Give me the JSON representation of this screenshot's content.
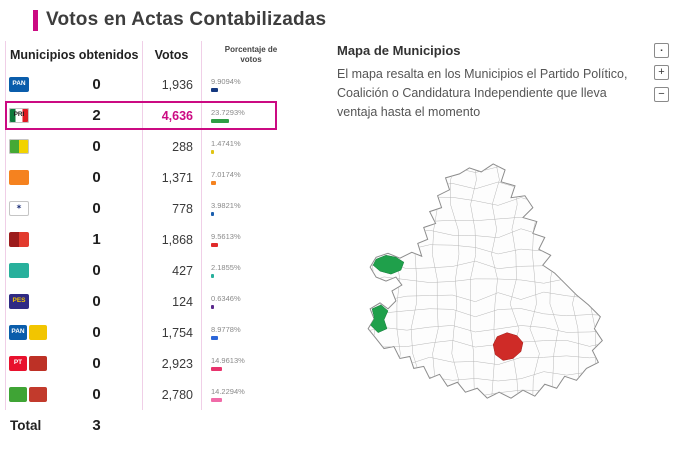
{
  "theme": {
    "accent": "#cb0a82",
    "separator": "#f0cfe7",
    "map_outline": "#8c8c8c"
  },
  "title": "Votos en Actas Contabilizadas",
  "table": {
    "headers": {
      "municipios": "Municipios obtenidos",
      "votos": "Votos",
      "porcentaje": "Porcentaje de votos"
    },
    "rows": [
      {
        "party": "pan",
        "logo": [
          {
            "colors": [
              "#0a5dab"
            ],
            "label": "PAN",
            "fg": "#ffffff"
          }
        ],
        "municipios": "0",
        "votos": "1,936",
        "pct": "9.9094%",
        "pct_value": 9.9094,
        "bar_color": "#14387f",
        "highlight": false
      },
      {
        "party": "pri",
        "logo": [
          {
            "colors": [
              "#0c7a3c",
              "#ffffff",
              "#df1a22"
            ],
            "label": "PRI",
            "fg": "#1c1c1c",
            "border": true
          }
        ],
        "municipios": "2",
        "votos": "4,636",
        "pct": "23.7293%",
        "pct_value": 23.7293,
        "bar_color": "#2f9e45",
        "highlight": true
      },
      {
        "party": "green-yellow-party",
        "logo": [
          {
            "colors": [
              "#45a935",
              "#f2d300"
            ],
            "label": "",
            "fg": "",
            "border": true
          }
        ],
        "municipios": "0",
        "votos": "288",
        "pct": "1.4741%",
        "pct_value": 1.4741,
        "bar_color": "#e0c414",
        "highlight": false
      },
      {
        "party": "mc",
        "logo": [
          {
            "colors": [
              "#f5821f"
            ],
            "label": "",
            "fg": "#ffffff"
          }
        ],
        "municipios": "0",
        "votos": "1,371",
        "pct": "7.0174%",
        "pct_value": 7.0174,
        "bar_color": "#f5821f",
        "highlight": false
      },
      {
        "party": "star-party",
        "logo": [
          {
            "colors": [
              "#ffffff"
            ],
            "label": "✶",
            "fg": "#23357d",
            "border": true
          }
        ],
        "municipios": "0",
        "votos": "778",
        "pct": "3.9821%",
        "pct_value": 3.9821,
        "bar_color": "#1b5fae",
        "highlight": false
      },
      {
        "party": "red-party",
        "logo": [
          {
            "colors": [
              "#9c1c1c",
              "#e23b2e"
            ],
            "label": "",
            "fg": ""
          }
        ],
        "municipios": "1",
        "votos": "1,868",
        "pct": "9.5613%",
        "pct_value": 9.5613,
        "bar_color": "#e02a2a",
        "highlight": false
      },
      {
        "party": "teal-party",
        "logo": [
          {
            "colors": [
              "#28b09c"
            ],
            "label": "",
            "fg": "#ffffff"
          }
        ],
        "municipios": "0",
        "votos": "427",
        "pct": "2.1855%",
        "pct_value": 2.1855,
        "bar_color": "#28b09c",
        "highlight": false
      },
      {
        "party": "pes",
        "logo": [
          {
            "colors": [
              "#2f2a84"
            ],
            "label": "PES",
            "fg": "#f2c500"
          }
        ],
        "municipios": "0",
        "votos": "124",
        "pct": "0.6346%",
        "pct_value": 0.6346,
        "bar_color": "#5b2a8c",
        "highlight": false
      },
      {
        "party": "pan-coalition",
        "logo": [
          {
            "colors": [
              "#0a5dab"
            ],
            "label": "PAN",
            "fg": "#ffffff"
          },
          {
            "colors": [
              "#f2c500"
            ],
            "label": "",
            "fg": ""
          }
        ],
        "municipios": "0",
        "votos": "1,754",
        "pct": "8.9778%",
        "pct_value": 8.9778,
        "bar_color": "#2b66d9",
        "highlight": false
      },
      {
        "party": "pt-coalition",
        "logo": [
          {
            "colors": [
              "#e8112d"
            ],
            "label": "PT",
            "fg": "#ffffff"
          },
          {
            "colors": [
              "#bd3126"
            ],
            "label": "",
            "fg": ""
          }
        ],
        "municipios": "0",
        "votos": "2,923",
        "pct": "14.9613%",
        "pct_value": 14.9613,
        "bar_color": "#e8336d",
        "highlight": false
      },
      {
        "party": "green-red-coalition",
        "logo": [
          {
            "colors": [
              "#3fa435"
            ],
            "label": "",
            "fg": ""
          },
          {
            "colors": [
              "#c23a2c"
            ],
            "label": "",
            "fg": ""
          }
        ],
        "municipios": "0",
        "votos": "2,780",
        "pct": "14.2294%",
        "pct_value": 14.2294,
        "bar_color": "#f06ba8",
        "highlight": false
      }
    ],
    "total_label": "Total",
    "total_value": "3"
  },
  "map": {
    "title": "Mapa de Municipios",
    "description": "El mapa resalta en los Municipios el Partido Político, Coalición o Candidatura Independiente que lleva ventaja hasta el momento",
    "controls": [
      {
        "name": "reset",
        "glyph": "▪"
      },
      {
        "name": "zoom-in",
        "glyph": "+"
      },
      {
        "name": "zoom-out",
        "glyph": "−"
      }
    ],
    "highlight_colors": {
      "green": "#1fa04b",
      "red": "#cf2b27"
    }
  }
}
